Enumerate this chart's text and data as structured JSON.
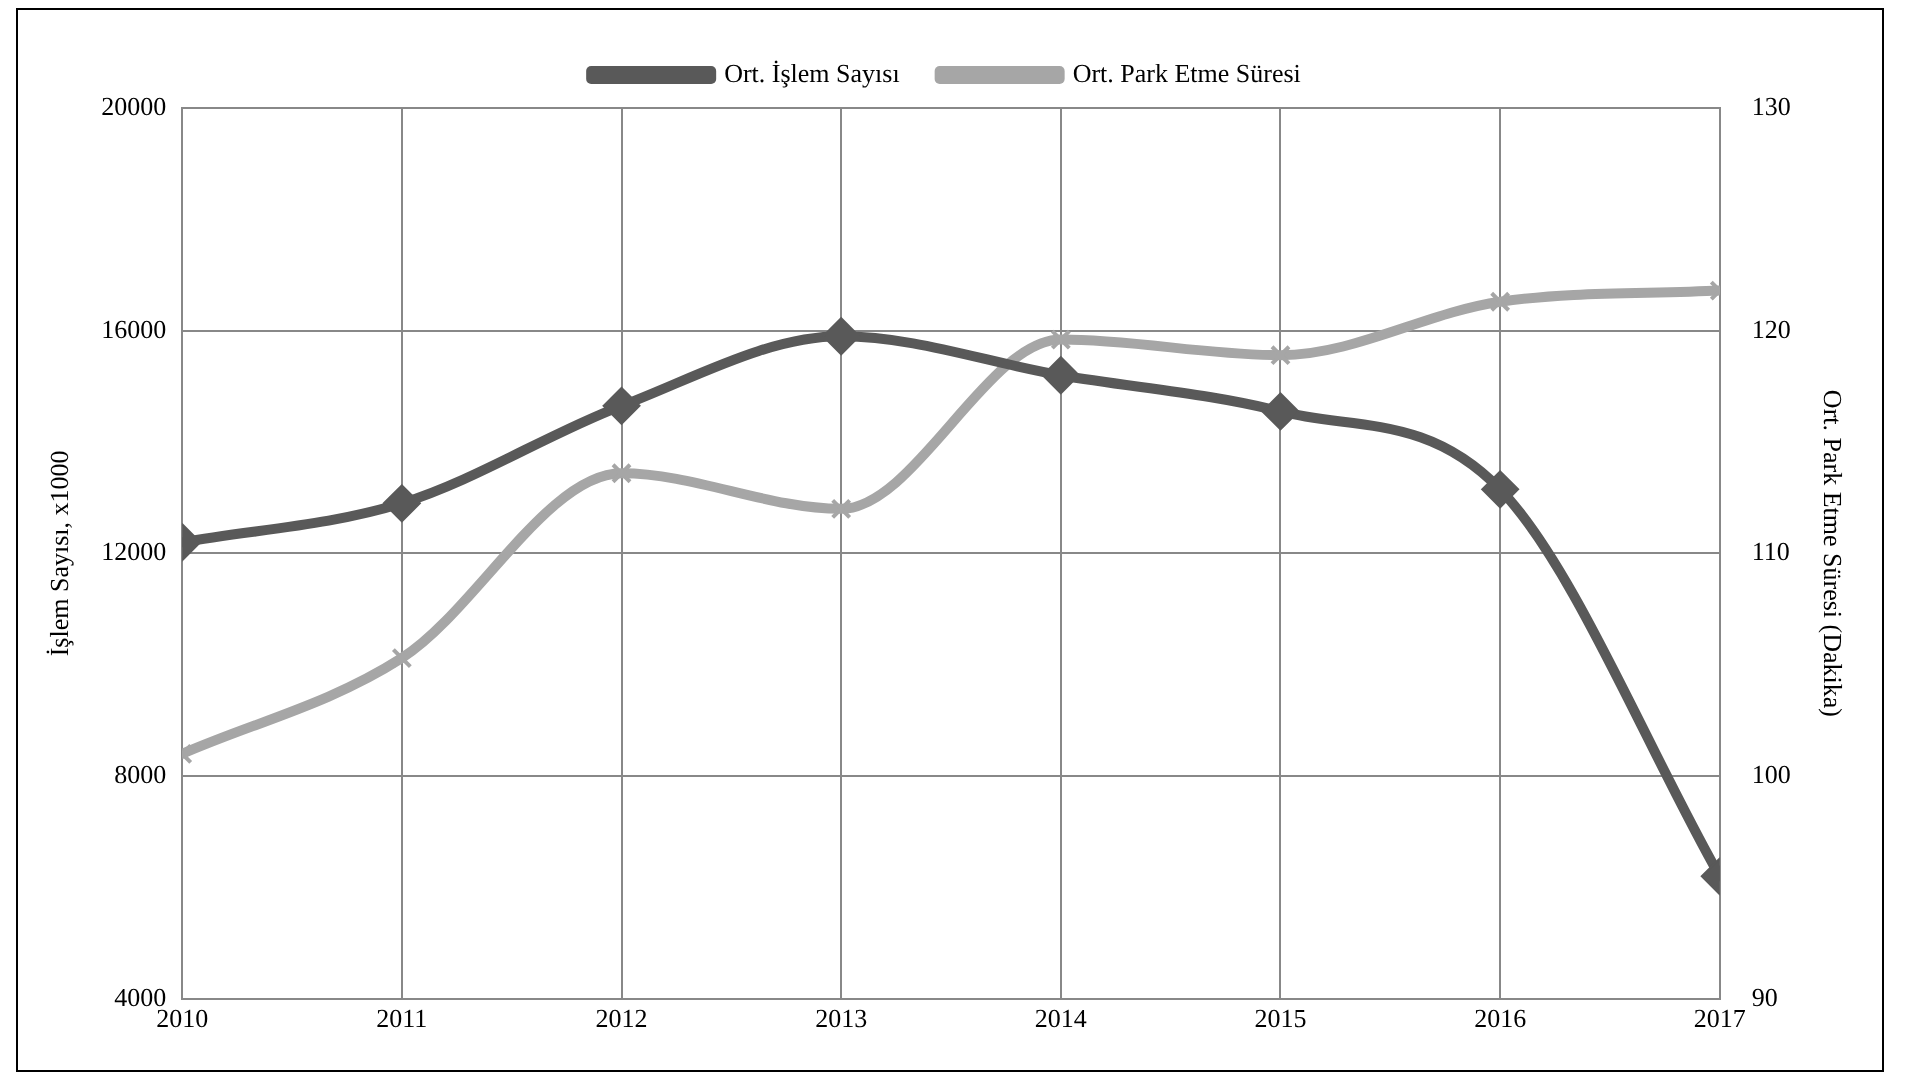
{
  "chart_data": {
    "type": "line",
    "ylabel": "İşlem Sayısı, x1000",
    "y2label": "Ort. Park Etme Süresi (Dakika)",
    "x": [
      2010,
      2011,
      2012,
      2013,
      2014,
      2015,
      2016,
      2017
    ],
    "xlim": [
      2010,
      2017
    ],
    "xticks": [
      2010,
      2011,
      2012,
      2013,
      2014,
      2015,
      2016,
      2017
    ],
    "ylim": [
      4000,
      20000
    ],
    "yticks": [
      4000,
      8000,
      12000,
      16000,
      20000
    ],
    "y2lim": [
      90,
      130
    ],
    "y2ticks": [
      90,
      100,
      110,
      120,
      130
    ],
    "series": [
      {
        "name": "Ort. İşlem Sayısı",
        "color": "#595959",
        "marker": "diamond",
        "values": [
          12200,
          12900,
          14650,
          15900,
          15200,
          14550,
          13150,
          6200
        ]
      },
      {
        "name": "Ort. Park Etme Süresi",
        "color": "#a6a6a6",
        "marker": "cross",
        "axis": "y2",
        "values": [
          101,
          105.3,
          113.6,
          112,
          119.6,
          118.9,
          121.3,
          121.8
        ]
      }
    ],
    "grid": true,
    "legend": "top"
  }
}
